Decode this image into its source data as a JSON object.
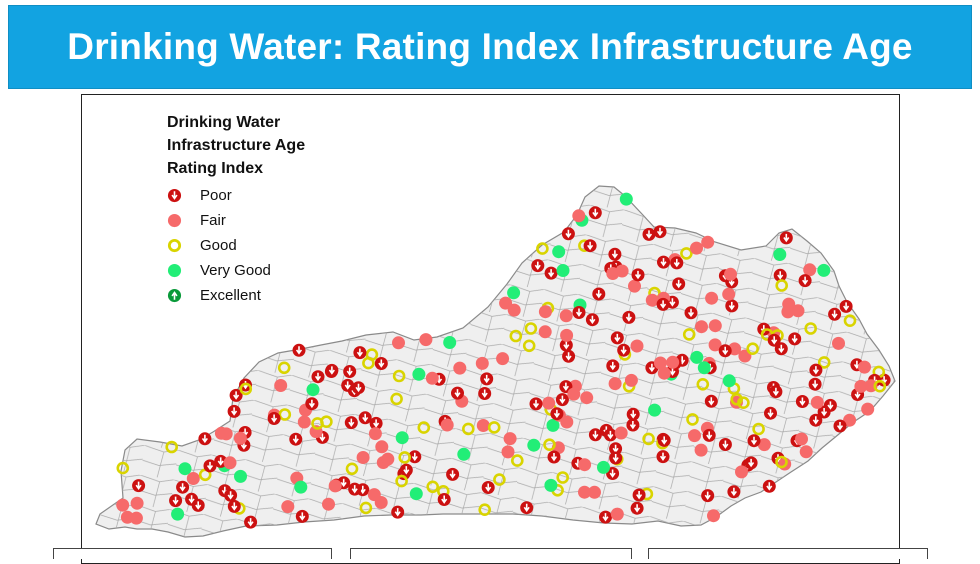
{
  "header": {
    "title": "Drinking Water: Rating Index Infrastructure Age"
  },
  "legend": {
    "title_lines": [
      "Drinking Water",
      "Infrastructure Age",
      "Rating Index"
    ],
    "items": [
      {
        "label": "Poor",
        "icon": "down-arrow-circle-icon",
        "color": "#cc1111"
      },
      {
        "label": "Fair",
        "icon": "filled-circle-icon",
        "color": "#f66a6a"
      },
      {
        "label": "Good",
        "icon": "ring-icon",
        "color": "#d9d400"
      },
      {
        "label": "Very Good",
        "icon": "filled-circle-icon",
        "color": "#22ee77"
      },
      {
        "label": "Excellent",
        "icon": "up-arrow-circle-icon",
        "color": "#0a9a3a"
      }
    ]
  },
  "map": {
    "region": "Kentucky counties",
    "fill": "#efefef",
    "border": "#9a9a9a"
  }
}
